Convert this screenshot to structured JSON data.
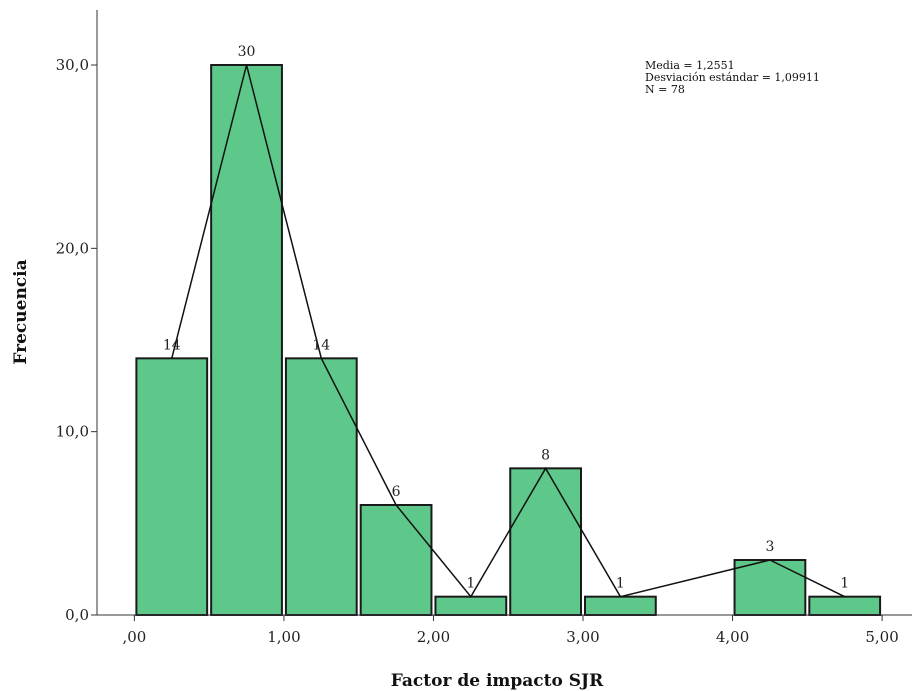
{
  "chart_data": {
    "type": "bar",
    "subtype": "histogram",
    "bins": [
      {
        "x0": 0.0,
        "x1": 0.5,
        "value": 14
      },
      {
        "x0": 0.5,
        "x1": 1.0,
        "value": 30
      },
      {
        "x0": 1.0,
        "x1": 1.5,
        "value": 14
      },
      {
        "x0": 1.5,
        "x1": 2.0,
        "value": 6
      },
      {
        "x0": 2.0,
        "x1": 2.5,
        "value": 1
      },
      {
        "x0": 2.5,
        "x1": 3.0,
        "value": 8
      },
      {
        "x0": 3.0,
        "x1": 3.5,
        "value": 1
      },
      {
        "x0": 4.0,
        "x1": 4.5,
        "value": 3
      },
      {
        "x0": 4.5,
        "x1": 5.0,
        "value": 1
      }
    ],
    "polygon": {
      "x": [
        0.25,
        0.75,
        1.25,
        1.75,
        2.25,
        2.75,
        3.25,
        4.25,
        4.75
      ],
      "y": [
        14,
        30,
        14,
        6,
        1,
        8,
        1,
        3,
        1
      ]
    },
    "data_labels": [
      "14",
      "30",
      "14",
      "6",
      "1",
      "8",
      "1",
      "3",
      "1"
    ],
    "xlabel": "Factor de impacto SJR",
    "ylabel": "Frecuencia",
    "xlim": [
      -0.25,
      5.2
    ],
    "ylim": [
      0,
      33
    ],
    "x_ticks": [
      {
        "value": 0,
        "label": ",00"
      },
      {
        "value": 1,
        "label": "1,00"
      },
      {
        "value": 2,
        "label": "2,00"
      },
      {
        "value": 3,
        "label": "3,00"
      },
      {
        "value": 4,
        "label": "4,00"
      },
      {
        "value": 5,
        "label": "5,00"
      }
    ],
    "y_ticks": [
      {
        "value": 0,
        "label": "0,0"
      },
      {
        "value": 10,
        "label": "10,0"
      },
      {
        "value": 20,
        "label": "20,0"
      },
      {
        "value": 30,
        "label": "30,0"
      }
    ],
    "stats": [
      "Media = 1,2551",
      "Desviación estándar = 1,09911",
      "N = 78"
    ],
    "grid": false,
    "colors": {
      "bar_fill": "#5dc88a",
      "bar_stroke": "#1a1a1a",
      "line": "#111111",
      "axis": "#333333"
    }
  }
}
